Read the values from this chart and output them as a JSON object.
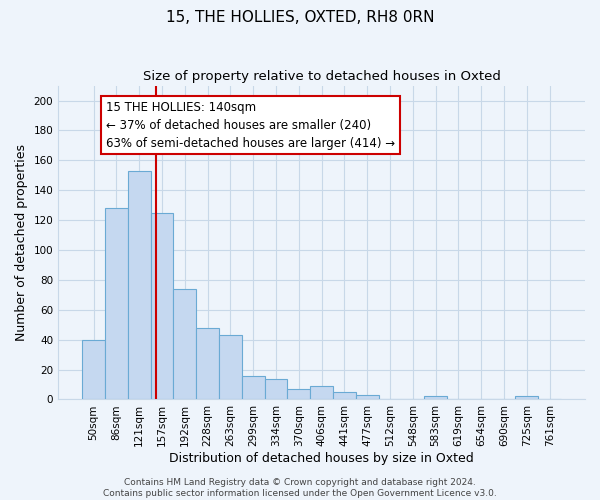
{
  "title": "15, THE HOLLIES, OXTED, RH8 0RN",
  "subtitle": "Size of property relative to detached houses in Oxted",
  "xlabel": "Distribution of detached houses by size in Oxted",
  "ylabel": "Number of detached properties",
  "categories": [
    "50sqm",
    "86sqm",
    "121sqm",
    "157sqm",
    "192sqm",
    "228sqm",
    "263sqm",
    "299sqm",
    "334sqm",
    "370sqm",
    "406sqm",
    "441sqm",
    "477sqm",
    "512sqm",
    "548sqm",
    "583sqm",
    "619sqm",
    "654sqm",
    "690sqm",
    "725sqm",
    "761sqm"
  ],
  "values": [
    40,
    128,
    153,
    125,
    74,
    48,
    43,
    16,
    14,
    7,
    9,
    5,
    3,
    0,
    0,
    2,
    0,
    0,
    0,
    2,
    0
  ],
  "bar_color": "#c5d8f0",
  "bar_edge_color": "#6aaad4",
  "vline_x_index": 2.72,
  "vline_color": "#cc0000",
  "annotation_text": "15 THE HOLLIES: 140sqm\n← 37% of detached houses are smaller (240)\n63% of semi-detached houses are larger (414) →",
  "annotation_box_color": "#ffffff",
  "annotation_box_edge_color": "#cc0000",
  "ylim": [
    0,
    210
  ],
  "yticks": [
    0,
    20,
    40,
    60,
    80,
    100,
    120,
    140,
    160,
    180,
    200
  ],
  "grid_color": "#c8d8e8",
  "background_color": "#eef4fb",
  "plot_bg_color": "#eef4fb",
  "footer_line1": "Contains HM Land Registry data © Crown copyright and database right 2024.",
  "footer_line2": "Contains public sector information licensed under the Open Government Licence v3.0.",
  "title_fontsize": 11,
  "subtitle_fontsize": 9.5,
  "label_fontsize": 9,
  "tick_fontsize": 7.5,
  "annotation_fontsize": 8.5,
  "footer_fontsize": 6.5
}
